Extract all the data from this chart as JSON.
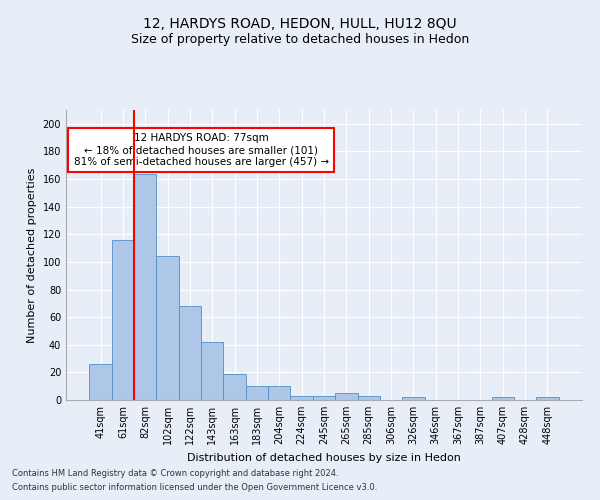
{
  "title": "12, HARDYS ROAD, HEDON, HULL, HU12 8QU",
  "subtitle": "Size of property relative to detached houses in Hedon",
  "xlabel": "Distribution of detached houses by size in Hedon",
  "ylabel": "Number of detached properties",
  "footer_line1": "Contains HM Land Registry data © Crown copyright and database right 2024.",
  "footer_line2": "Contains public sector information licensed under the Open Government Licence v3.0.",
  "bar_labels": [
    "41sqm",
    "61sqm",
    "82sqm",
    "102sqm",
    "122sqm",
    "143sqm",
    "163sqm",
    "183sqm",
    "204sqm",
    "224sqm",
    "245sqm",
    "265sqm",
    "285sqm",
    "306sqm",
    "326sqm",
    "346sqm",
    "367sqm",
    "387sqm",
    "407sqm",
    "428sqm",
    "448sqm"
  ],
  "bar_values": [
    26,
    116,
    164,
    104,
    68,
    42,
    19,
    10,
    10,
    3,
    3,
    5,
    3,
    0,
    2,
    0,
    0,
    0,
    2,
    0,
    2
  ],
  "bar_color": "#aec6e8",
  "bar_edge_color": "#5090c8",
  "vline_x": 1.5,
  "vline_color": "red",
  "annotation_text": "12 HARDYS ROAD: 77sqm\n← 18% of detached houses are smaller (101)\n81% of semi-detached houses are larger (457) →",
  "annotation_box_color": "white",
  "annotation_box_edge": "red",
  "ylim": [
    0,
    210
  ],
  "yticks": [
    0,
    20,
    40,
    60,
    80,
    100,
    120,
    140,
    160,
    180,
    200
  ],
  "bg_color": "#e8eef7",
  "plot_bg_color": "#e8eef7",
  "title_fontsize": 10,
  "subtitle_fontsize": 9,
  "axis_label_fontsize": 8,
  "tick_fontsize": 7,
  "annotation_fontsize": 7.5,
  "footer_fontsize": 6
}
